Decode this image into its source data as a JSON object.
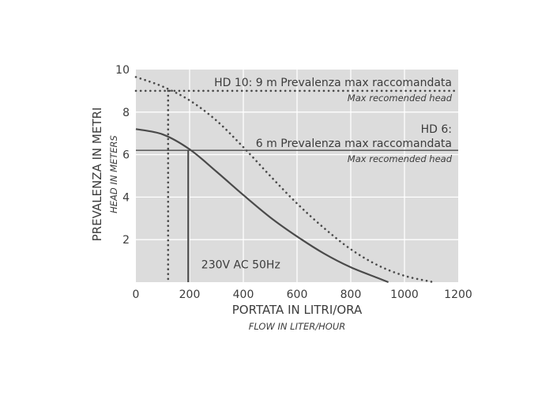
{
  "chart_data": {
    "type": "line",
    "xlabel": "PORTATA IN LITRI/ORA",
    "xlabel_sub": "FLOW IN LITER/HOUR",
    "ylabel": "PREVALENZA IN METRI",
    "ylabel_sub": "HEAD IN METERS",
    "xlim": [
      0,
      1200
    ],
    "ylim": [
      0,
      10
    ],
    "xticks": [
      0,
      200,
      400,
      600,
      800,
      1000,
      1200
    ],
    "yticks": [
      2,
      4,
      6,
      8,
      10
    ],
    "x_tick_labels": [
      "0",
      "200",
      "400",
      "600",
      "800",
      "1000",
      "1200"
    ],
    "y_tick_labels": [
      "2",
      "4",
      "6",
      "8",
      "10"
    ],
    "grid": true,
    "background": "#dcdcdc",
    "line_color": "#4a4a4a",
    "series": [
      {
        "style": "dotted",
        "points": [
          [
            0,
            9.65
          ],
          [
            100,
            9.2
          ],
          [
            200,
            8.55
          ],
          [
            300,
            7.6
          ],
          [
            400,
            6.35
          ],
          [
            500,
            5.0
          ],
          [
            600,
            3.7
          ],
          [
            700,
            2.55
          ],
          [
            800,
            1.55
          ],
          [
            900,
            0.8
          ],
          [
            1000,
            0.3
          ],
          [
            1100,
            0.02
          ]
        ]
      },
      {
        "style": "solid",
        "points": [
          [
            0,
            7.2
          ],
          [
            100,
            6.95
          ],
          [
            200,
            6.25
          ],
          [
            300,
            5.2
          ],
          [
            400,
            4.1
          ],
          [
            500,
            3.05
          ],
          [
            600,
            2.15
          ],
          [
            700,
            1.35
          ],
          [
            800,
            0.7
          ],
          [
            900,
            0.2
          ],
          [
            940,
            0.0
          ]
        ]
      }
    ],
    "reference_lines": [
      {
        "orientation": "horizontal",
        "y": 9.0,
        "style": "dotted",
        "label": "HD 10: 9 m Prevalenza max raccomandata",
        "sublabel": "Max recomended head"
      },
      {
        "orientation": "horizontal",
        "y": 6.2,
        "style": "solid",
        "label_line1": "HD 6:",
        "label": "6 m Prevalenza max raccomandata",
        "sublabel": "Max recomended head"
      },
      {
        "orientation": "vertical",
        "x": 120,
        "y_top": 9.0,
        "style": "dotted"
      },
      {
        "orientation": "vertical",
        "x": 195,
        "y_top": 6.2,
        "style": "solid"
      }
    ],
    "annotations": [
      {
        "text": "230V AC 50Hz",
        "x": 220,
        "y": 0.5
      }
    ]
  }
}
